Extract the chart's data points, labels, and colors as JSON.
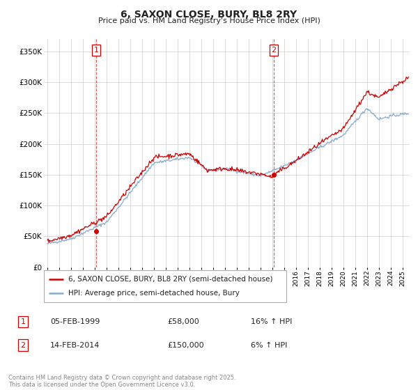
{
  "title": "6, SAXON CLOSE, BURY, BL8 2RY",
  "subtitle": "Price paid vs. HM Land Registry's House Price Index (HPI)",
  "legend_line1": "6, SAXON CLOSE, BURY, BL8 2RY (semi-detached house)",
  "legend_line2": "HPI: Average price, semi-detached house, Bury",
  "footnote": "Contains HM Land Registry data © Crown copyright and database right 2025.\nThis data is licensed under the Open Government Licence v3.0.",
  "purchase1_label": "1",
  "purchase1_date": "05-FEB-1999",
  "purchase1_price": "£58,000",
  "purchase1_hpi": "16% ↑ HPI",
  "purchase2_label": "2",
  "purchase2_date": "14-FEB-2014",
  "purchase2_price": "£150,000",
  "purchase2_hpi": "6% ↑ HPI",
  "vline1_x": 1999.12,
  "vline2_x": 2014.12,
  "vline_color": "#cc0000",
  "red_line_color": "#cc0000",
  "blue_line_color": "#88aacc",
  "ylim": [
    0,
    370000
  ],
  "yticks": [
    0,
    50000,
    100000,
    150000,
    200000,
    250000,
    300000,
    350000
  ],
  "xlim_left": 1994.7,
  "xlim_right": 2025.6,
  "background_color": "#ffffff",
  "grid_color": "#cccccc",
  "title_fontsize": 10,
  "subtitle_fontsize": 8
}
